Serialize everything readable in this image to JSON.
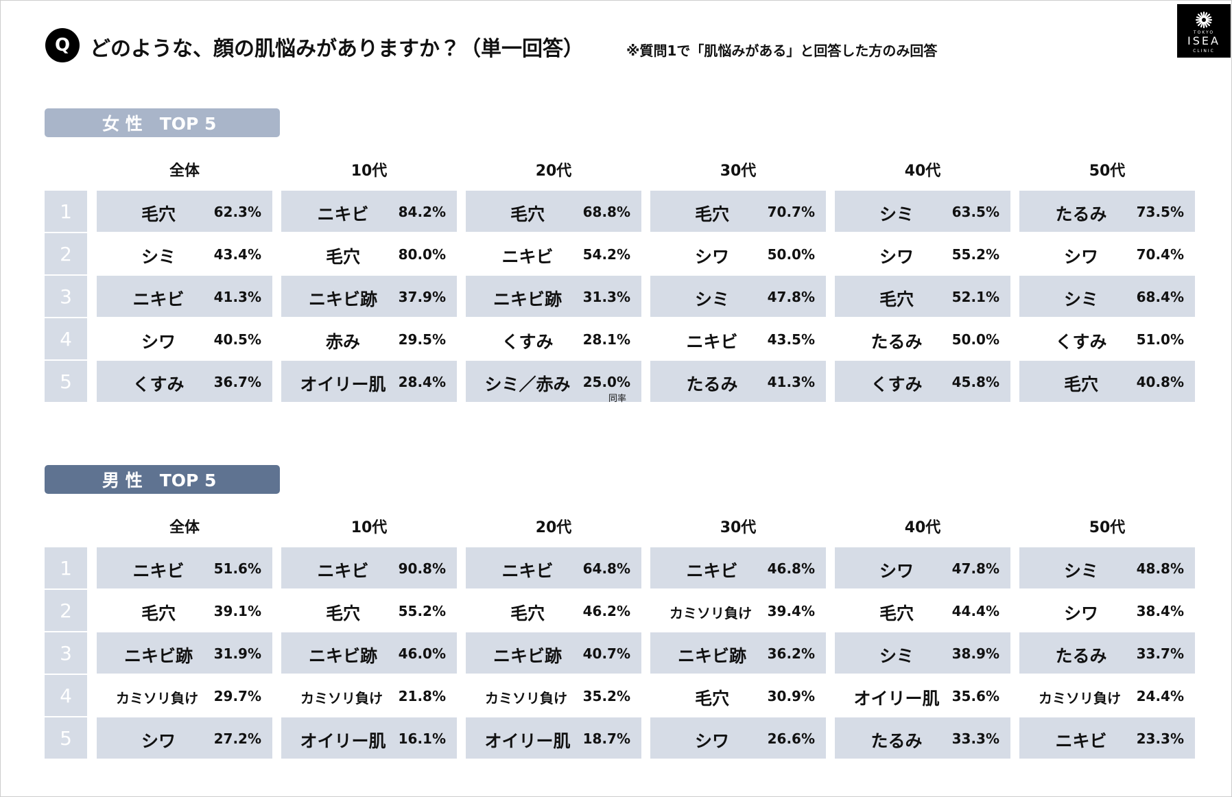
{
  "header": {
    "badge": "Q",
    "title": "どのような、顔の肌悩みがありますか？（単一回答）",
    "note": "※質問1で「肌悩みがある」と回答した方のみ回答"
  },
  "logo": {
    "top": "TOKYO",
    "name": "ISEA",
    "bottom": "CLINIC"
  },
  "sections": [
    {
      "label": "女 性　TOP 5",
      "columns": [
        "全体",
        "10代",
        "20代",
        "30代",
        "40代",
        "50代"
      ],
      "ranks": [
        "1",
        "2",
        "3",
        "4",
        "5"
      ],
      "rows": [
        [
          [
            "毛穴",
            "62.3%"
          ],
          [
            "ニキビ",
            "84.2%"
          ],
          [
            "毛穴",
            "68.8%"
          ],
          [
            "毛穴",
            "70.7%"
          ],
          [
            "シミ",
            "63.5%"
          ],
          [
            "たるみ",
            "73.5%"
          ]
        ],
        [
          [
            "シミ",
            "43.4%"
          ],
          [
            "毛穴",
            "80.0%"
          ],
          [
            "ニキビ",
            "54.2%"
          ],
          [
            "シワ",
            "50.0%"
          ],
          [
            "シワ",
            "55.2%"
          ],
          [
            "シワ",
            "70.4%"
          ]
        ],
        [
          [
            "ニキビ",
            "41.3%"
          ],
          [
            "ニキビ跡",
            "37.9%"
          ],
          [
            "ニキビ跡",
            "31.3%"
          ],
          [
            "シミ",
            "47.8%"
          ],
          [
            "毛穴",
            "52.1%"
          ],
          [
            "シミ",
            "68.4%"
          ]
        ],
        [
          [
            "シワ",
            "40.5%"
          ],
          [
            "赤み",
            "29.5%"
          ],
          [
            "くすみ",
            "28.1%"
          ],
          [
            "ニキビ",
            "43.5%"
          ],
          [
            "たるみ",
            "50.0%"
          ],
          [
            "くすみ",
            "51.0%"
          ]
        ],
        [
          [
            "くすみ",
            "36.7%"
          ],
          [
            "オイリー肌",
            "28.4%"
          ],
          [
            "シミ／赤み",
            "25.0%",
            "同率"
          ],
          [
            "たるみ",
            "41.3%"
          ],
          [
            "くすみ",
            "45.8%"
          ],
          [
            "毛穴",
            "40.8%"
          ]
        ]
      ]
    },
    {
      "label": "男 性　TOP 5",
      "columns": [
        "全体",
        "10代",
        "20代",
        "30代",
        "40代",
        "50代"
      ],
      "ranks": [
        "1",
        "2",
        "3",
        "4",
        "5"
      ],
      "rows": [
        [
          [
            "ニキビ",
            "51.6%"
          ],
          [
            "ニキビ",
            "90.8%"
          ],
          [
            "ニキビ",
            "64.8%"
          ],
          [
            "ニキビ",
            "46.8%"
          ],
          [
            "シワ",
            "47.8%"
          ],
          [
            "シミ",
            "48.8%"
          ]
        ],
        [
          [
            "毛穴",
            "39.1%"
          ],
          [
            "毛穴",
            "55.2%"
          ],
          [
            "毛穴",
            "46.2%"
          ],
          [
            "カミソリ負け",
            "39.4%"
          ],
          [
            "毛穴",
            "44.4%"
          ],
          [
            "シワ",
            "38.4%"
          ]
        ],
        [
          [
            "ニキビ跡",
            "31.9%"
          ],
          [
            "ニキビ跡",
            "46.0%"
          ],
          [
            "ニキビ跡",
            "40.7%"
          ],
          [
            "ニキビ跡",
            "36.2%"
          ],
          [
            "シミ",
            "38.9%"
          ],
          [
            "たるみ",
            "33.7%"
          ]
        ],
        [
          [
            "カミソリ負け",
            "29.7%"
          ],
          [
            "カミソリ負け",
            "21.8%"
          ],
          [
            "カミソリ負け",
            "35.2%"
          ],
          [
            "毛穴",
            "30.9%"
          ],
          [
            "オイリー肌",
            "35.6%"
          ],
          [
            "カミソリ負け",
            "24.4%"
          ]
        ],
        [
          [
            "シワ",
            "27.2%"
          ],
          [
            "オイリー肌",
            "16.1%"
          ],
          [
            "オイリー肌",
            "18.7%"
          ],
          [
            "シワ",
            "26.6%"
          ],
          [
            "たるみ",
            "33.3%"
          ],
          [
            "ニキビ",
            "23.3%"
          ]
        ]
      ]
    }
  ]
}
